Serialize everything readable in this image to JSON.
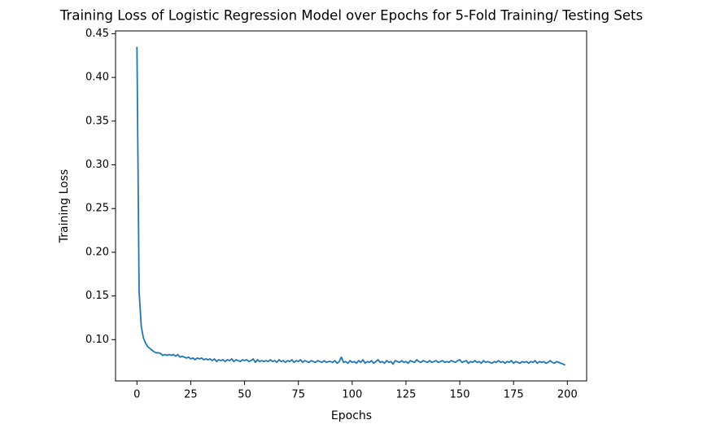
{
  "chart_data": {
    "type": "line",
    "title": "Training Loss of Logistic Regression Model over Epochs for 5-Fold Training/ Testing Sets",
    "xlabel": "Epochs",
    "ylabel": "Training Loss",
    "xlim": [
      -9.95,
      208.95
    ],
    "ylim": [
      0.0528,
      0.4532
    ],
    "xticks": [
      0,
      25,
      50,
      75,
      100,
      125,
      150,
      175,
      200
    ],
    "yticks": [
      {
        "value": 0.1,
        "label": "0.10"
      },
      0.15,
      {
        "value": 0.2,
        "label": "0.20"
      },
      0.25,
      {
        "value": 0.3,
        "label": "0.30"
      },
      0.35,
      {
        "value": 0.4,
        "label": "0.40"
      },
      0.45
    ],
    "grid": false,
    "x": [
      0,
      1,
      2,
      3,
      4,
      5,
      6,
      7,
      8,
      9,
      10,
      11,
      12,
      13,
      14,
      15,
      16,
      17,
      18,
      19,
      20,
      21,
      22,
      23,
      24,
      25,
      26,
      27,
      28,
      29,
      30,
      31,
      32,
      33,
      34,
      35,
      36,
      37,
      38,
      39,
      40,
      41,
      42,
      43,
      44,
      45,
      46,
      47,
      48,
      49,
      50,
      51,
      52,
      53,
      54,
      55,
      56,
      57,
      58,
      59,
      60,
      61,
      62,
      63,
      64,
      65,
      66,
      67,
      68,
      69,
      70,
      71,
      72,
      73,
      74,
      75,
      76,
      77,
      78,
      79,
      80,
      81,
      82,
      83,
      84,
      85,
      86,
      87,
      88,
      89,
      90,
      91,
      92,
      93,
      94,
      95,
      96,
      97,
      98,
      99,
      100,
      101,
      102,
      103,
      104,
      105,
      106,
      107,
      108,
      109,
      110,
      111,
      112,
      113,
      114,
      115,
      116,
      117,
      118,
      119,
      120,
      121,
      122,
      123,
      124,
      125,
      126,
      127,
      128,
      129,
      130,
      131,
      132,
      133,
      134,
      135,
      136,
      137,
      138,
      139,
      140,
      141,
      142,
      143,
      144,
      145,
      146,
      147,
      148,
      149,
      150,
      151,
      152,
      153,
      154,
      155,
      156,
      157,
      158,
      159,
      160,
      161,
      162,
      163,
      164,
      165,
      166,
      167,
      168,
      169,
      170,
      171,
      172,
      173,
      174,
      175,
      176,
      177,
      178,
      179,
      180,
      181,
      182,
      183,
      184,
      185,
      186,
      187,
      188,
      189,
      190,
      191,
      192,
      193,
      194,
      195,
      196,
      197,
      198,
      199
    ],
    "series": [
      {
        "color": "#1f77b4",
        "values": [
          0.435,
          0.155,
          0.115,
          0.102,
          0.096,
          0.092,
          0.09,
          0.088,
          0.086,
          0.085,
          0.085,
          0.084,
          0.082,
          0.083,
          0.082,
          0.083,
          0.082,
          0.083,
          0.081,
          0.083,
          0.08,
          0.081,
          0.08,
          0.079,
          0.08,
          0.078,
          0.079,
          0.077,
          0.079,
          0.078,
          0.079,
          0.077,
          0.078,
          0.077,
          0.078,
          0.076,
          0.078,
          0.075,
          0.077,
          0.076,
          0.077,
          0.075,
          0.077,
          0.076,
          0.078,
          0.075,
          0.077,
          0.076,
          0.075,
          0.077,
          0.076,
          0.077,
          0.075,
          0.076,
          0.078,
          0.074,
          0.077,
          0.075,
          0.076,
          0.075,
          0.076,
          0.075,
          0.077,
          0.075,
          0.076,
          0.074,
          0.077,
          0.075,
          0.076,
          0.074,
          0.076,
          0.075,
          0.077,
          0.074,
          0.076,
          0.075,
          0.077,
          0.074,
          0.076,
          0.075,
          0.074,
          0.076,
          0.075,
          0.074,
          0.076,
          0.075,
          0.074,
          0.076,
          0.074,
          0.075,
          0.075,
          0.074,
          0.076,
          0.073,
          0.075,
          0.08,
          0.074,
          0.075,
          0.073,
          0.076,
          0.074,
          0.075,
          0.073,
          0.076,
          0.074,
          0.077,
          0.073,
          0.075,
          0.074,
          0.076,
          0.073,
          0.075,
          0.077,
          0.074,
          0.075,
          0.073,
          0.076,
          0.074,
          0.075,
          0.072,
          0.076,
          0.075,
          0.074,
          0.076,
          0.074,
          0.075,
          0.073,
          0.076,
          0.075,
          0.074,
          0.077,
          0.075,
          0.074,
          0.076,
          0.075,
          0.074,
          0.076,
          0.074,
          0.075,
          0.076,
          0.074,
          0.075,
          0.076,
          0.074,
          0.075,
          0.074,
          0.076,
          0.075,
          0.074,
          0.076,
          0.077,
          0.074,
          0.075,
          0.076,
          0.073,
          0.075,
          0.074,
          0.076,
          0.074,
          0.075,
          0.073,
          0.076,
          0.074,
          0.075,
          0.074,
          0.073,
          0.075,
          0.074,
          0.076,
          0.074,
          0.075,
          0.073,
          0.075,
          0.074,
          0.076,
          0.073,
          0.075,
          0.074,
          0.073,
          0.075,
          0.074,
          0.075,
          0.073,
          0.075,
          0.074,
          0.076,
          0.073,
          0.075,
          0.074,
          0.075,
          0.073,
          0.074,
          0.076,
          0.074,
          0.073,
          0.075,
          0.074,
          0.073,
          0.072,
          0.071
        ]
      }
    ]
  }
}
